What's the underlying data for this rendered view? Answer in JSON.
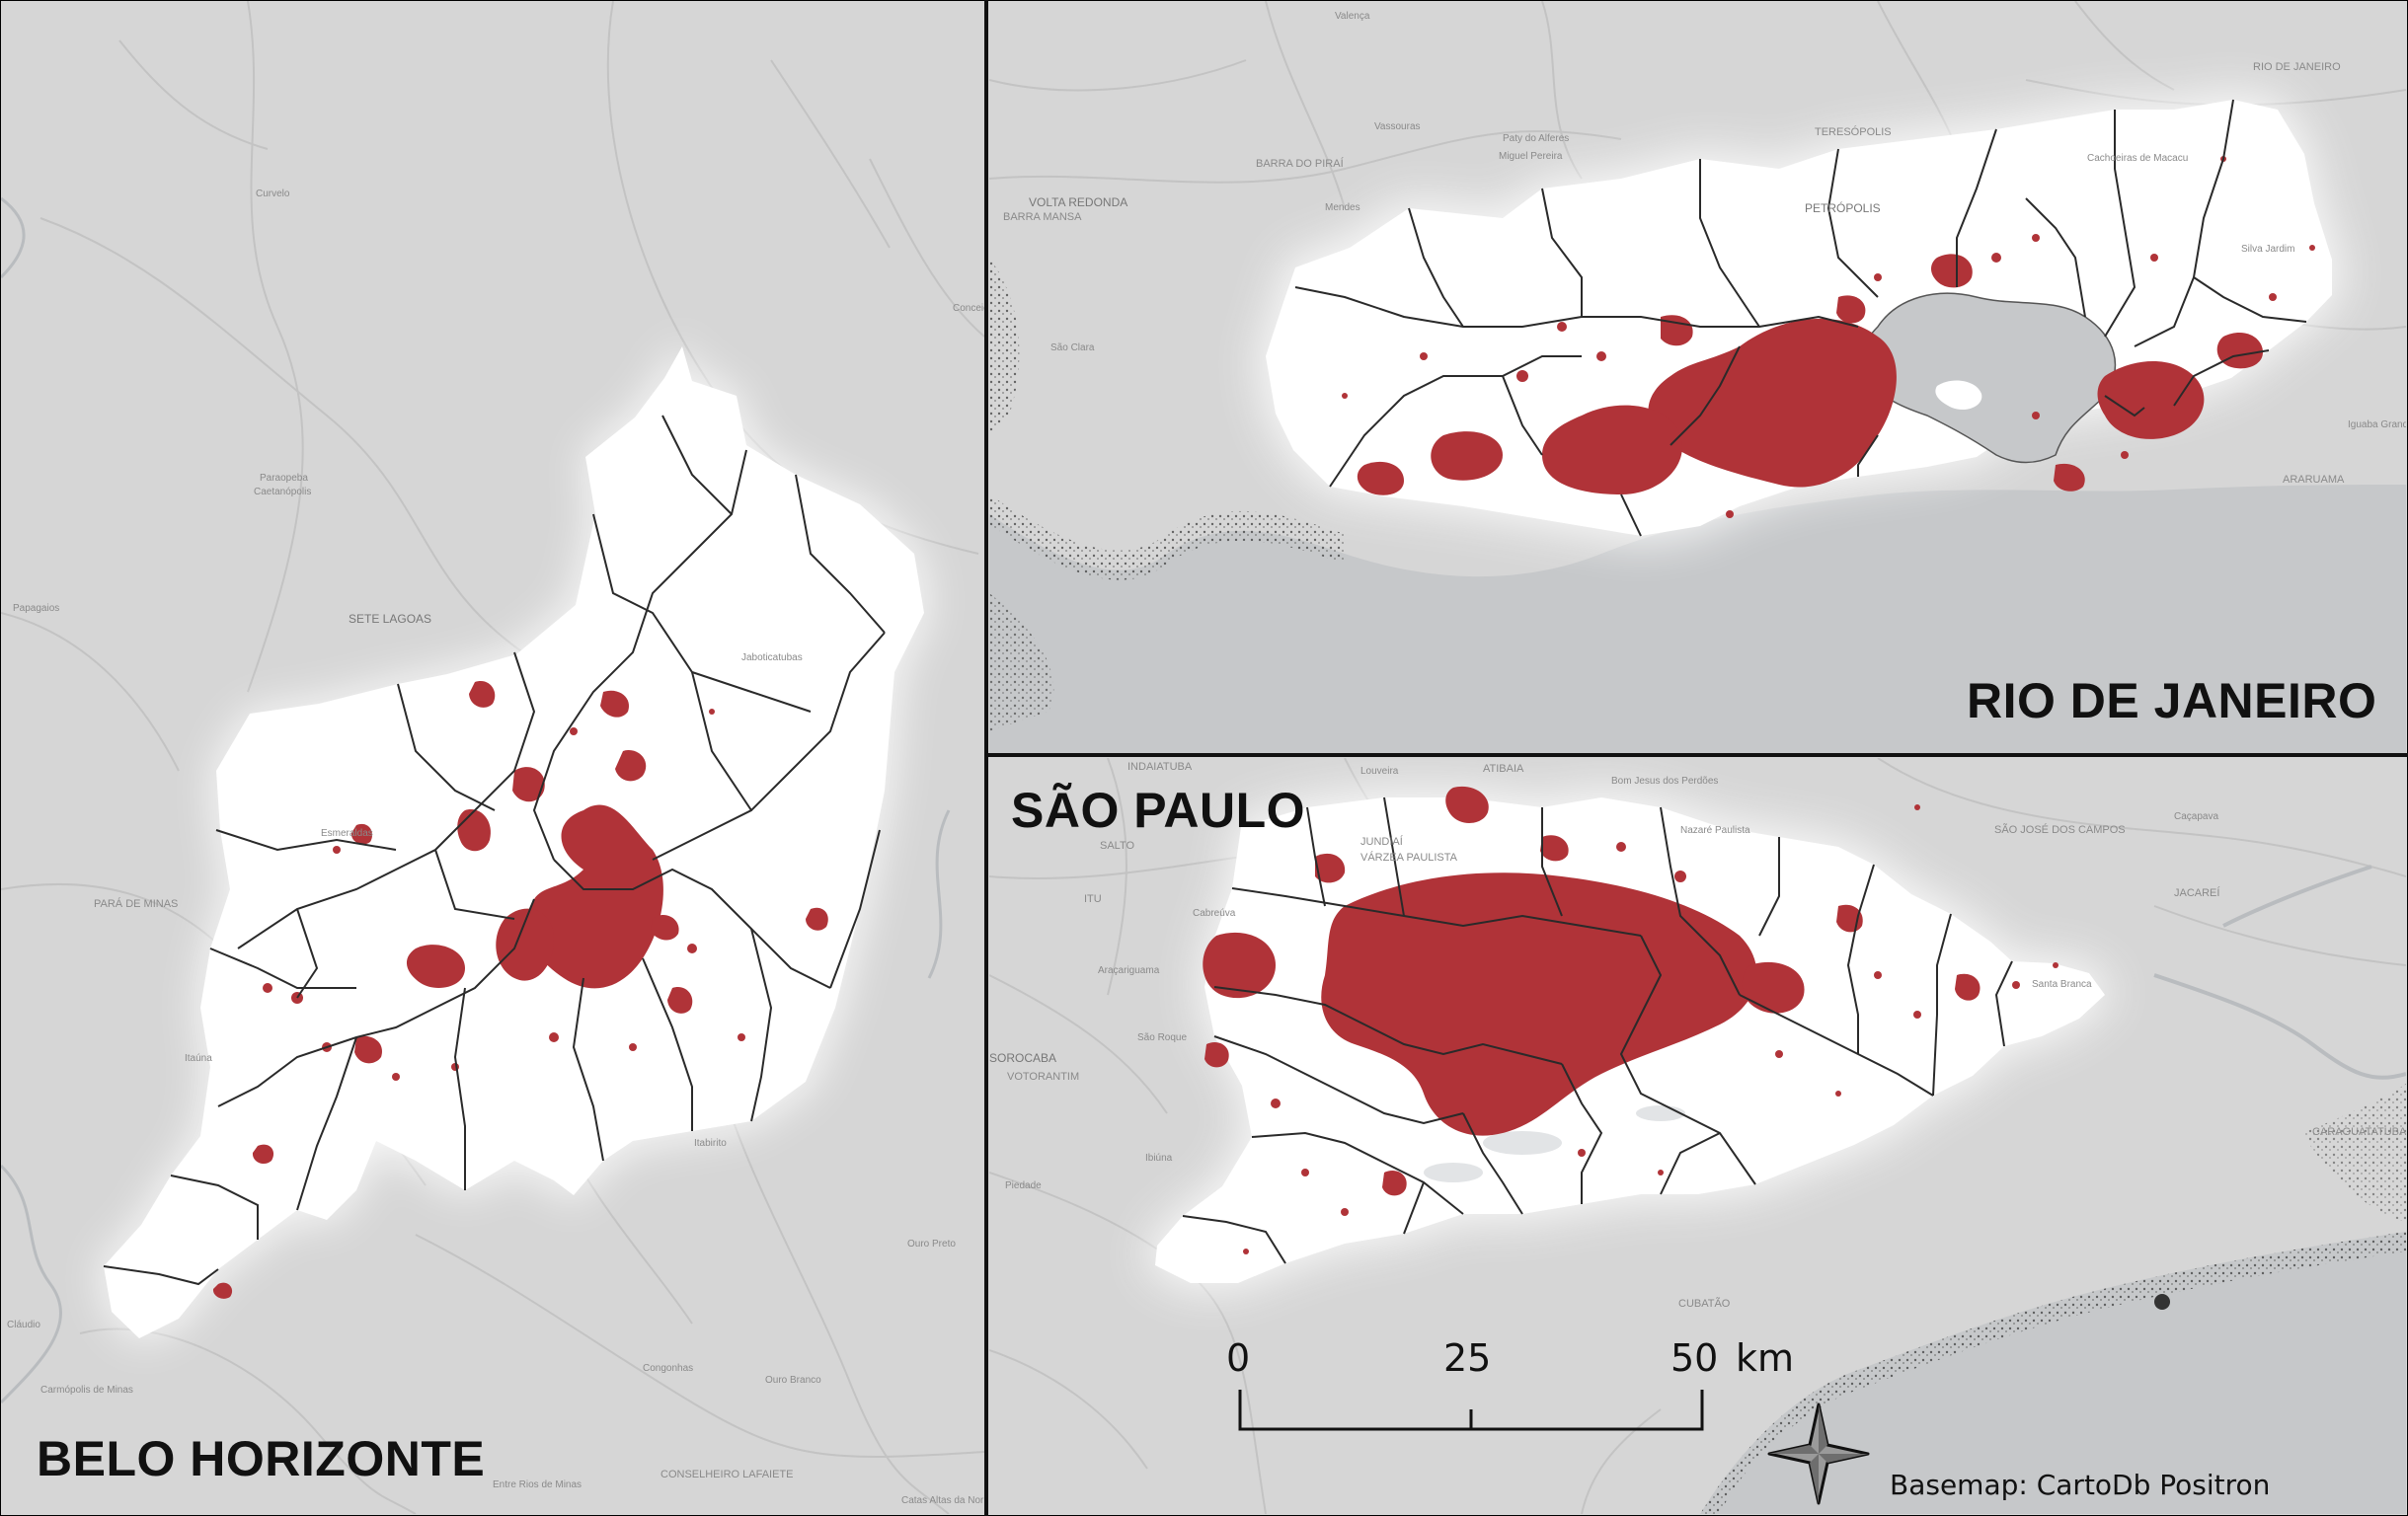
{
  "panels": {
    "belo_horizonte": {
      "title": "BELO HORIZONTE"
    },
    "rio_de_janeiro": {
      "title": "RIO DE JANEIRO"
    },
    "sao_paulo": {
      "title": "SÃO PAULO"
    }
  },
  "place_labels": {
    "belo_horizonte": [
      "Curvelo",
      "Paraopeba",
      "Caetanópolis",
      "SETE LAGOAS",
      "Papagaios",
      "Jaboticatubas",
      "Esmeraldas",
      "PARÁ DE MINAS",
      "Itaúna",
      "Itabirito",
      "Ouro Preto",
      "Cláudio",
      "Carmópolis de Minas",
      "Congonhas",
      "Ouro Branco",
      "Entre Rios de Minas",
      "CONSELHEIRO LAFAIETE",
      "Catas Altas da Noruega",
      "Conceição do Mato"
    ],
    "rio_de_janeiro": [
      "Valença",
      "VOLTA REDONDA",
      "BARRA MANSA",
      "BARRA DO PIRAÍ",
      "Vassouras",
      "Miguel Pereira",
      "Paty do Alferes",
      "PETRÓPOLIS",
      "TERESÓPOLIS",
      "Cachoeiras de Macacu",
      "RIO DE JANEIRO",
      "Silva Jardim",
      "ARARUAMA",
      "Iguaba Grande",
      "Mendes",
      "São Clara"
    ],
    "sao_paulo": [
      "INDAIATUBA",
      "Louveira",
      "ATIBAIA",
      "Bom Jesus dos Perdões",
      "Nazaré Paulista",
      "SALTO",
      "JUNDIAÍ",
      "VÁRZEA PAULISTA",
      "ITU",
      "Cabreúva",
      "SÃO JOSÉ DOS CAMPOS",
      "Caçapava",
      "JACAREÍ",
      "Santa Branca",
      "Araçariguama",
      "São Roque",
      "SOROCABA",
      "VOTORANTIM",
      "Ibiúna",
      "Piedade",
      "CUBATÃO",
      "CARAGUATATUBA"
    ]
  },
  "legend": {
    "scale_ticks": [
      "0",
      "25",
      "50"
    ],
    "scale_unit": "km",
    "attribution": "Basemap: CartoDb Positron"
  },
  "colors": {
    "basemap": "#d6d6d6",
    "water": "#c6c8ca",
    "metro_area": "#ffffff",
    "urban_footprint": "#b03338",
    "boundaries": "#2a2a2a",
    "roads": "#c2c2c2"
  }
}
